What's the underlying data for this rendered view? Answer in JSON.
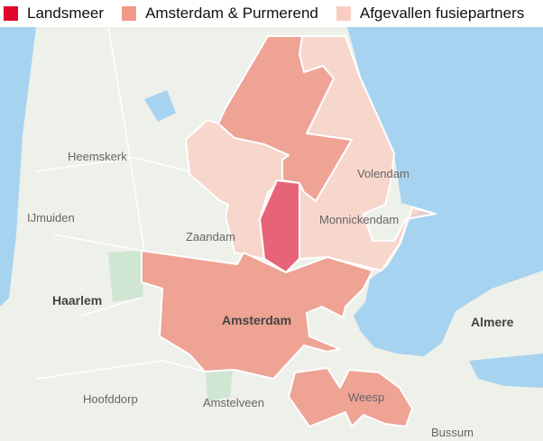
{
  "legend": [
    {
      "label": "Landsmeer",
      "color": "#e2062c"
    },
    {
      "label": "Amsterdam & Purmerend",
      "color": "#f29a88"
    },
    {
      "label": "Afgevallen fusiepartners",
      "color": "#f9cdc2"
    }
  ],
  "map": {
    "colors": {
      "land": "#eef0ea",
      "water": "#a6d3f0",
      "park": "#cfe6d2",
      "border": "#ffffff"
    },
    "regions": [
      {
        "name": "Amsterdam & Purmerend",
        "color": "#f29a88"
      },
      {
        "name": "Landsmeer",
        "color": "#e2062c"
      },
      {
        "name": "Afgevallen fusiepartners",
        "color": "#f9cdc2"
      }
    ],
    "places": [
      "Heemskerk",
      "IJmuiden",
      "Zaandam",
      "Volendam",
      "Monnickendam",
      "Haarlem",
      "Amsterdam",
      "Almere",
      "Hoofddorp",
      "Amstelveen",
      "Weesp",
      "Bussum"
    ]
  }
}
